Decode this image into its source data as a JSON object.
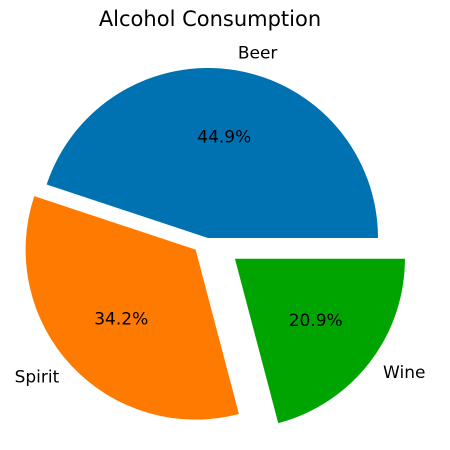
{
  "chart_data": {
    "type": "pie",
    "title": "Alcohol Consumption",
    "categories": [
      "Beer",
      "Spirit",
      "Wine"
    ],
    "values": [
      44.9,
      34.2,
      20.9
    ],
    "value_labels": [
      "44.9%",
      "34.2%",
      "20.9%"
    ],
    "colors": [
      "#0072b2",
      "#ff7a00",
      "#00a400"
    ],
    "explode": [
      0,
      0.1,
      0.2
    ]
  }
}
